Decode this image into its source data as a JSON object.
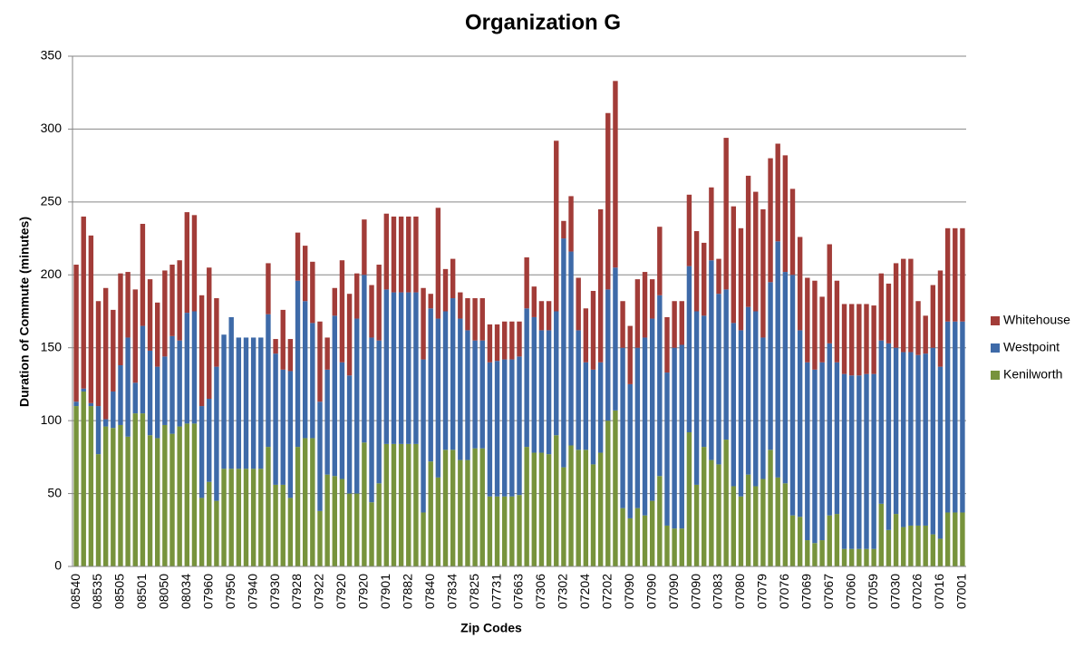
{
  "chart_data": {
    "type": "stacked_bar",
    "title": "Organization G",
    "x_label": "Zip Codes",
    "y_label": "Duration of Commute (minutes)",
    "categories": [
      "08540",
      null,
      null,
      "08535",
      null,
      null,
      "08505",
      null,
      null,
      "08501",
      null,
      null,
      "08050",
      null,
      null,
      "08034",
      null,
      null,
      "07960",
      null,
      null,
      "07950",
      null,
      null,
      "07940",
      null,
      null,
      "07930",
      null,
      null,
      "07928",
      null,
      null,
      "07922",
      null,
      null,
      "07920",
      null,
      null,
      "07920",
      null,
      null,
      "07901",
      null,
      null,
      "07882",
      null,
      null,
      "07840",
      null,
      null,
      "07834",
      null,
      null,
      "07825",
      null,
      null,
      "07731",
      null,
      null,
      "07663",
      null,
      null,
      "07306",
      null,
      null,
      "07302",
      null,
      null,
      "07204",
      null,
      null,
      "07202",
      null,
      null,
      "07090",
      null,
      null,
      "07090",
      null,
      null,
      "07090",
      null,
      null,
      "07090",
      null,
      null,
      "07083",
      null,
      null,
      "07080",
      null,
      null,
      "07079",
      null,
      null,
      "07076",
      null,
      null,
      "07069",
      null,
      null,
      "07067",
      null,
      null,
      "07060",
      null,
      null,
      "07059",
      null,
      null,
      "07030",
      null,
      null,
      "07026",
      null,
      null,
      "07016",
      null,
      null,
      "07001"
    ],
    "series": [
      {
        "name": "Kenilworth",
        "color": "#77933c",
        "values": [
          110,
          120,
          110,
          77,
          96,
          95,
          97,
          89,
          105,
          105,
          90,
          88,
          97,
          91,
          96,
          98,
          98,
          47,
          58,
          45,
          67,
          67,
          67,
          67,
          67,
          67,
          82,
          56,
          56,
          47,
          82,
          88,
          88,
          38,
          63,
          62,
          60,
          50,
          50,
          85,
          44,
          57,
          84,
          84,
          84,
          84,
          84,
          37,
          72,
          61,
          80,
          80,
          73,
          73,
          81,
          81,
          48,
          48,
          48,
          48,
          49,
          82,
          78,
          78,
          77,
          90,
          68,
          83,
          80,
          80,
          70,
          78,
          100,
          107,
          40,
          33,
          40,
          35,
          45,
          62,
          28,
          26,
          26,
          92,
          56,
          82,
          73,
          70,
          87,
          55,
          48,
          63,
          55,
          60,
          80,
          61,
          57,
          35,
          34,
          18,
          16,
          18,
          35,
          36,
          12,
          12,
          12,
          12,
          12,
          43,
          25,
          36,
          27,
          28,
          28,
          28,
          22,
          19,
          37,
          37,
          37
        ]
      },
      {
        "name": "Westpoint",
        "color": "#3e6aa8",
        "values": [
          3,
          2,
          2,
          33,
          5,
          25,
          41,
          68,
          21,
          60,
          58,
          49,
          47,
          67,
          59,
          76,
          77,
          63,
          57,
          92,
          92,
          104,
          90,
          90,
          90,
          90,
          91,
          90,
          79,
          87,
          114,
          94,
          79,
          75,
          72,
          110,
          80,
          81,
          120,
          115,
          113,
          98,
          106,
          104,
          104,
          104,
          104,
          105,
          105,
          109,
          95,
          104,
          97,
          89,
          74,
          74,
          92,
          93,
          94,
          94,
          95,
          95,
          93,
          84,
          85,
          85,
          157,
          133,
          82,
          60,
          65,
          62,
          90,
          98,
          110,
          92,
          110,
          122,
          125,
          124,
          105,
          124,
          126,
          114,
          119,
          90,
          137,
          117,
          103,
          112,
          114,
          115,
          120,
          97,
          115,
          162,
          145,
          165,
          128,
          122,
          119,
          122,
          118,
          104,
          120,
          119,
          119,
          120,
          120,
          112,
          128,
          114,
          120,
          119,
          117,
          118,
          128,
          118,
          131,
          131,
          131
        ]
      },
      {
        "name": "Whitehouse",
        "color": "#a23c38",
        "values": [
          94,
          118,
          115,
          72,
          90,
          56,
          63,
          45,
          64,
          70,
          49,
          44,
          59,
          49,
          55,
          69,
          66,
          76,
          90,
          47,
          0,
          0,
          0,
          0,
          0,
          0,
          35,
          10,
          41,
          22,
          33,
          38,
          42,
          55,
          22,
          19,
          70,
          56,
          31,
          38,
          36,
          52,
          52,
          52,
          52,
          52,
          52,
          49,
          10,
          76,
          29,
          27,
          18,
          22,
          29,
          29,
          26,
          25,
          26,
          26,
          24,
          35,
          21,
          20,
          20,
          117,
          12,
          38,
          36,
          37,
          54,
          105,
          121,
          128,
          32,
          40,
          47,
          45,
          27,
          47,
          38,
          32,
          30,
          49,
          55,
          50,
          50,
          24,
          104,
          80,
          70,
          90,
          82,
          88,
          85,
          67,
          80,
          59,
          64,
          58,
          61,
          45,
          68,
          56,
          48,
          49,
          49,
          48,
          47,
          46,
          41,
          58,
          64,
          64,
          37,
          26,
          43,
          66,
          64,
          64,
          64
        ]
      }
    ],
    "ylim": [
      0,
      350
    ],
    "yticks": [
      0,
      50,
      100,
      150,
      200,
      250,
      300,
      350
    ],
    "grid": true,
    "legend": "right"
  }
}
